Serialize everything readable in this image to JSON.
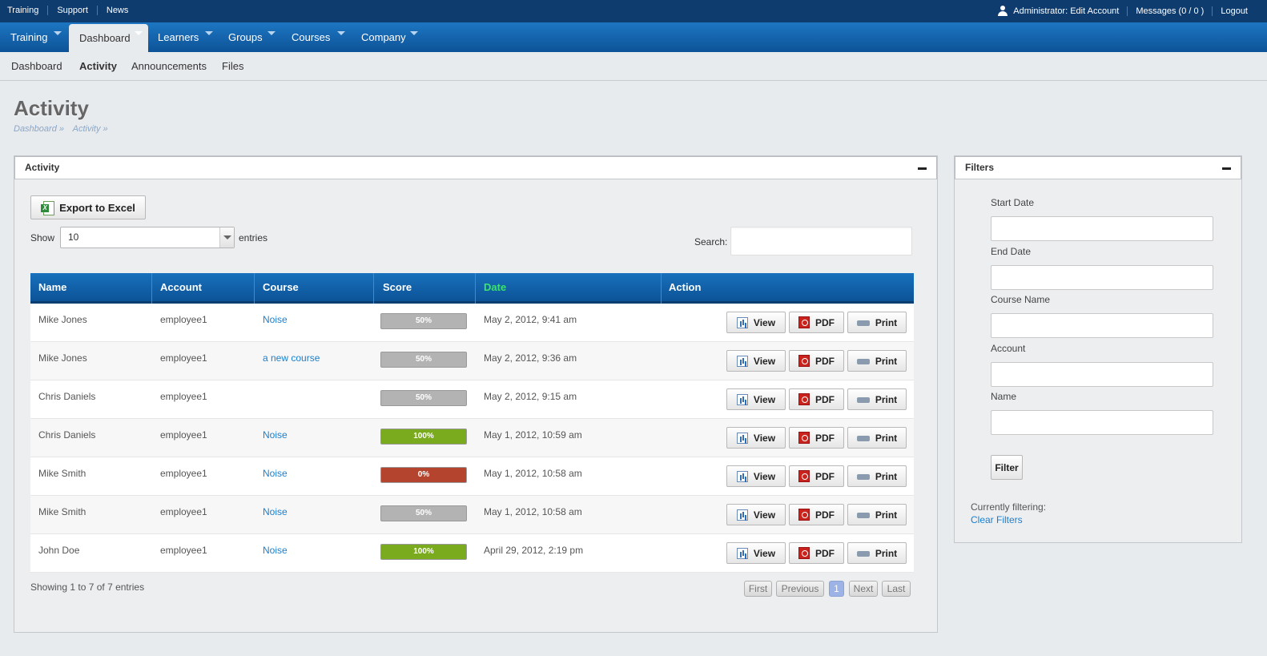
{
  "utility_bar": {
    "left_links": [
      "Training",
      "Support",
      "News"
    ],
    "account_link": "Administrator: Edit Account",
    "messages_link": "Messages (0 / 0 )",
    "logout_link": "Logout"
  },
  "main_nav": {
    "items": [
      {
        "label": "Training"
      },
      {
        "label": "Dashboard"
      },
      {
        "label": "Learners"
      },
      {
        "label": "Groups"
      },
      {
        "label": "Courses"
      },
      {
        "label": "Company"
      }
    ],
    "active": "Dashboard"
  },
  "sub_nav": {
    "items": [
      "Dashboard",
      "Activity",
      "Announcements",
      "Files"
    ],
    "active": "Activity"
  },
  "page": {
    "title": "Activity",
    "breadcrumb": [
      "Dashboard »",
      "Activity »"
    ]
  },
  "activity_panel": {
    "title": "Activity",
    "export_label": "Export to Excel",
    "show_label": "Show",
    "entries_value": "10",
    "entries_label": "entries",
    "search_label": "Search:",
    "search_value": "",
    "columns": [
      "Name",
      "Account",
      "Course",
      "Score",
      "Date",
      "Action"
    ],
    "sorted_column": "Date",
    "rows": [
      {
        "name": "Mike Jones",
        "account": "employee1",
        "course": "Noise",
        "score": "50%",
        "score_status": "neutral",
        "date": "May 2, 2012, 9:41 am"
      },
      {
        "name": "Mike Jones",
        "account": "employee1",
        "course": "a new course",
        "score": "50%",
        "score_status": "neutral",
        "date": "May 2, 2012, 9:36 am"
      },
      {
        "name": "Chris Daniels",
        "account": "employee1",
        "course": "",
        "score": "50%",
        "score_status": "neutral",
        "date": "May 2, 2012, 9:15 am"
      },
      {
        "name": "Chris Daniels",
        "account": "employee1",
        "course": "Noise",
        "score": "100%",
        "score_status": "pass",
        "date": "May 1, 2012, 10:59 am"
      },
      {
        "name": "Mike Smith",
        "account": "employee1",
        "course": "Noise",
        "score": "0%",
        "score_status": "fail",
        "date": "May 1, 2012, 10:58 am"
      },
      {
        "name": "Mike Smith",
        "account": "employee1",
        "course": "Noise",
        "score": "50%",
        "score_status": "neutral",
        "date": "May 1, 2012, 10:58 am"
      },
      {
        "name": "John Doe",
        "account": "employee1",
        "course": "Noise",
        "score": "100%",
        "score_status": "pass",
        "date": "April 29, 2012, 2:19 pm"
      }
    ],
    "row_actions": {
      "view": "View",
      "pdf": "PDF",
      "print": "Print"
    },
    "info": "Showing 1 to 7 of 7 entries",
    "pagination": {
      "first": "First",
      "previous": "Previous",
      "current": "1",
      "next": "Next",
      "last": "Last"
    }
  },
  "filters_panel": {
    "title": "Filters",
    "fields": [
      {
        "label": "Start Date",
        "value": ""
      },
      {
        "label": "End Date",
        "value": ""
      },
      {
        "label": "Course Name",
        "value": ""
      },
      {
        "label": "Account",
        "value": ""
      },
      {
        "label": "Name",
        "value": ""
      }
    ],
    "filter_button": "Filter",
    "currently_filtering": "Currently filtering:",
    "clear_filters": "Clear Filters"
  },
  "colors": {
    "nav_blue": "#1d76c2",
    "score_neutral": "#b3b3b3",
    "score_pass": "#7aab1e",
    "score_fail": "#b4442e",
    "link": "#1a7fcf",
    "sorted_header": "#3ce26c"
  }
}
